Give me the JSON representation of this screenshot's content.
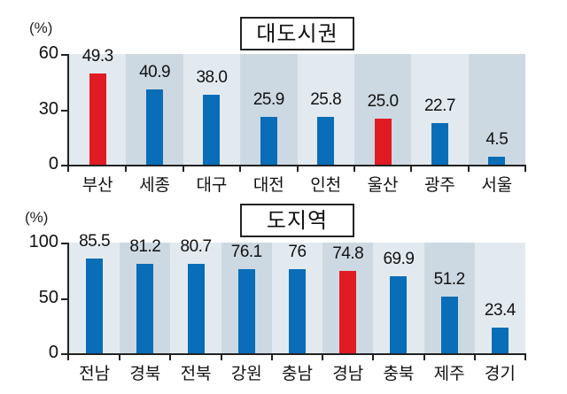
{
  "chart_data": [
    {
      "type": "bar",
      "title": "대도시권",
      "ylabel": "(%)",
      "xlabel": "",
      "ylim": [
        0,
        60
      ],
      "yticks": [
        0,
        30,
        60
      ],
      "categories": [
        "부산",
        "세종",
        "대구",
        "대전",
        "인천",
        "울산",
        "광주",
        "서울"
      ],
      "values": [
        49.3,
        40.9,
        38.0,
        25.9,
        25.8,
        25.0,
        22.7,
        4.5
      ],
      "value_labels": [
        "49.3",
        "40.9",
        "38.0",
        "25.9",
        "25.8",
        "25.0",
        "22.7",
        "4.5"
      ],
      "highlighted": [
        "부산",
        "울산"
      ],
      "colors": {
        "default": "#0a6db8",
        "highlight": "#e01b24",
        "band_light": "#e3eaef",
        "band_dark": "#cdd9e2"
      },
      "grid": false,
      "legend": null
    },
    {
      "type": "bar",
      "title": "도지역",
      "ylabel": "(%)",
      "xlabel": "",
      "ylim": [
        0,
        100
      ],
      "yticks": [
        0,
        50,
        100
      ],
      "categories": [
        "전남",
        "경북",
        "전북",
        "강원",
        "충남",
        "경남",
        "충북",
        "제주",
        "경기"
      ],
      "values": [
        85.5,
        81.2,
        80.7,
        76.1,
        76,
        74.8,
        69.9,
        51.2,
        23.4
      ],
      "value_labels": [
        "85.5",
        "81.2",
        "80.7",
        "76.1",
        "76",
        "74.8",
        "69.9",
        "51.2",
        "23.4"
      ],
      "highlighted": [
        "경남"
      ],
      "colors": {
        "default": "#0a6db8",
        "highlight": "#e01b24",
        "band_light": "#e3eaef",
        "band_dark": "#cdd9e2"
      },
      "grid": false,
      "legend": null
    }
  ]
}
